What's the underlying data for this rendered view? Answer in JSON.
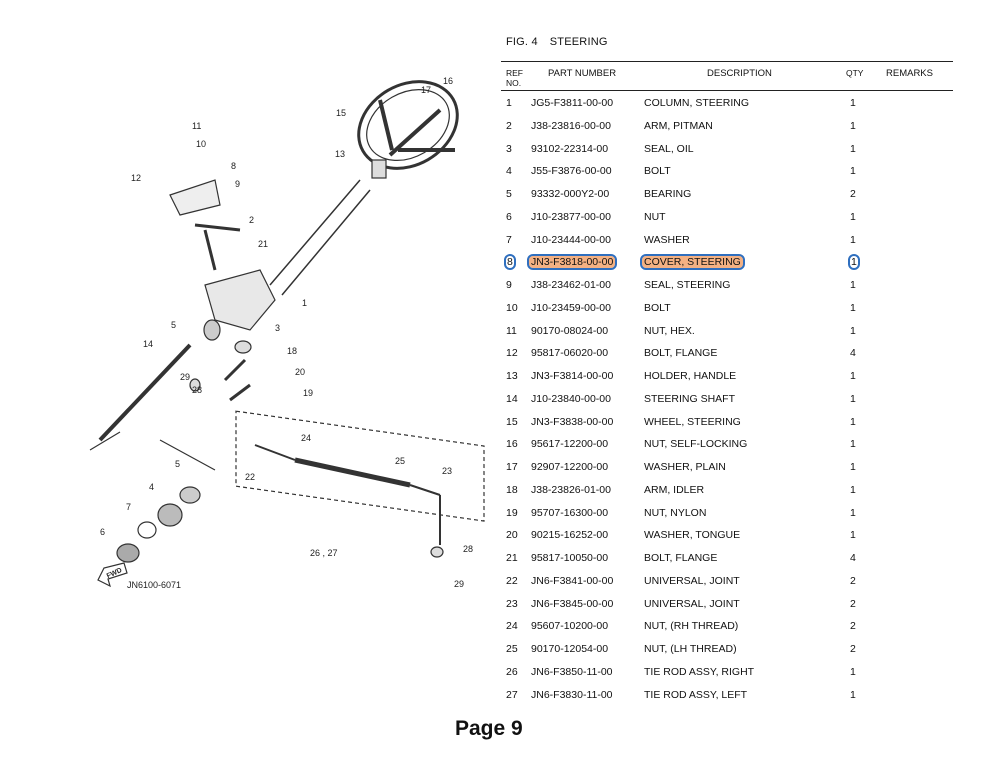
{
  "figure": {
    "number": "FIG. 4",
    "title": "STEERING"
  },
  "table": {
    "headers": {
      "ref_line1": "REF",
      "ref_line2": "NO.",
      "part_number": "PART NUMBER",
      "description": "DESCRIPTION",
      "qty": "QTY",
      "remarks": "REMARKS"
    },
    "highlight_color": "#f4b183",
    "highlight_outline": "#2f6fbf",
    "highlighted_ref": "8",
    "rows": [
      {
        "ref": "1",
        "part": "JG5-F3811-00-00",
        "desc": "COLUMN, STEERING",
        "qty": "1"
      },
      {
        "ref": "2",
        "part": "J38-23816-00-00",
        "desc": "ARM, PITMAN",
        "qty": "1"
      },
      {
        "ref": "3",
        "part": "93102-22314-00",
        "desc": "SEAL, OIL",
        "qty": "1"
      },
      {
        "ref": "4",
        "part": "J55-F3876-00-00",
        "desc": "BOLT",
        "qty": "1"
      },
      {
        "ref": "5",
        "part": "93332-000Y2-00",
        "desc": "BEARING",
        "qty": "2"
      },
      {
        "ref": "6",
        "part": "J10-23877-00-00",
        "desc": "NUT",
        "qty": "1"
      },
      {
        "ref": "7",
        "part": "J10-23444-00-00",
        "desc": "WASHER",
        "qty": "1"
      },
      {
        "ref": "8",
        "part": "JN3-F3818-00-00",
        "desc": "COVER, STEERING",
        "qty": "1"
      },
      {
        "ref": "9",
        "part": "J38-23462-01-00",
        "desc": "SEAL, STEERING",
        "qty": "1"
      },
      {
        "ref": "10",
        "part": "J10-23459-00-00",
        "desc": "BOLT",
        "qty": "1"
      },
      {
        "ref": "11",
        "part": "90170-08024-00",
        "desc": "NUT, HEX.",
        "qty": "1"
      },
      {
        "ref": "12",
        "part": "95817-06020-00",
        "desc": "BOLT, FLANGE",
        "qty": "4"
      },
      {
        "ref": "13",
        "part": "JN3-F3814-00-00",
        "desc": "HOLDER, HANDLE",
        "qty": "1"
      },
      {
        "ref": "14",
        "part": "J10-23840-00-00",
        "desc": "STEERING SHAFT",
        "qty": "1"
      },
      {
        "ref": "15",
        "part": "JN3-F3838-00-00",
        "desc": "WHEEL, STEERING",
        "qty": "1"
      },
      {
        "ref": "16",
        "part": "95617-12200-00",
        "desc": "NUT, SELF-LOCKING",
        "qty": "1"
      },
      {
        "ref": "17",
        "part": "92907-12200-00",
        "desc": "WASHER, PLAIN",
        "qty": "1"
      },
      {
        "ref": "18",
        "part": "J38-23826-01-00",
        "desc": "ARM, IDLER",
        "qty": "1"
      },
      {
        "ref": "19",
        "part": "95707-16300-00",
        "desc": "NUT, NYLON",
        "qty": "1"
      },
      {
        "ref": "20",
        "part": "90215-16252-00",
        "desc": "WASHER, TONGUE",
        "qty": "1"
      },
      {
        "ref": "21",
        "part": "95817-10050-00",
        "desc": "BOLT, FLANGE",
        "qty": "4"
      },
      {
        "ref": "22",
        "part": "JN6-F3841-00-00",
        "desc": "UNIVERSAL, JOINT",
        "qty": "2"
      },
      {
        "ref": "23",
        "part": "JN6-F3845-00-00",
        "desc": "UNIVERSAL, JOINT",
        "qty": "2"
      },
      {
        "ref": "24",
        "part": "95607-10200-00",
        "desc": "NUT, (RH THREAD)",
        "qty": "2"
      },
      {
        "ref": "25",
        "part": "90170-12054-00",
        "desc": "NUT, (LH THREAD)",
        "qty": "2"
      },
      {
        "ref": "26",
        "part": "JN6-F3850-11-00",
        "desc": "TIE ROD ASSY, RIGHT",
        "qty": "1"
      },
      {
        "ref": "27",
        "part": "JN6-F3830-11-00",
        "desc": "TIE ROD ASSY, LEFT",
        "qty": "1"
      }
    ]
  },
  "diagram": {
    "code": "JN6100-6071",
    "fwd_label": "FWD",
    "callouts": [
      "16",
      "17",
      "15",
      "11",
      "10",
      "13",
      "8",
      "12",
      "9",
      "2",
      "21",
      "1",
      "5",
      "3",
      "14",
      "18",
      "29",
      "20",
      "28",
      "19",
      "24",
      "5",
      "25",
      "23",
      "22",
      "4",
      "7",
      "6",
      "26 , 27",
      "28",
      "29"
    ]
  },
  "page_label": "Page 9"
}
